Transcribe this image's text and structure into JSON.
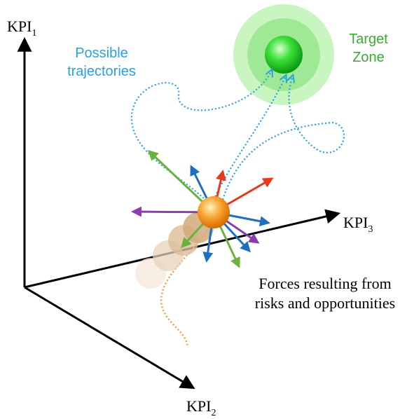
{
  "axes": {
    "kpi1": {
      "text": "KPI",
      "sub": "1"
    },
    "kpi2": {
      "text": "KPI",
      "sub": "2"
    },
    "kpi3": {
      "text": "KPI",
      "sub": "3"
    }
  },
  "target_label": [
    "Target",
    "Zone"
  ],
  "trajectories_label": [
    "Possible",
    "trajectories"
  ],
  "forces_label": [
    "Forces resulting from",
    "risks and opportunities"
  ]
}
